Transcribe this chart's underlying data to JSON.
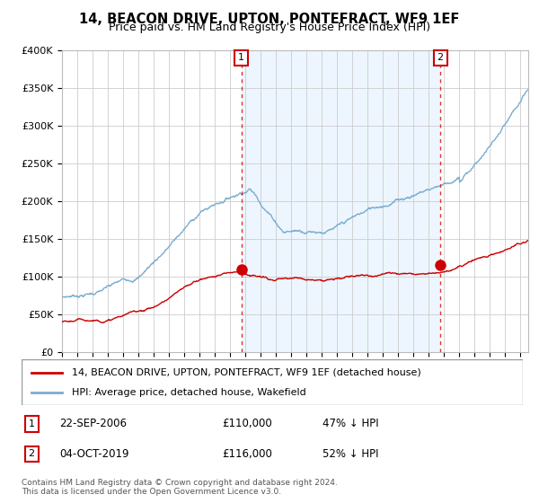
{
  "title": "14, BEACON DRIVE, UPTON, PONTEFRACT, WF9 1EF",
  "subtitle": "Price paid vs. HM Land Registry's House Price Index (HPI)",
  "ylim": [
    0,
    400000
  ],
  "yticks": [
    0,
    50000,
    100000,
    150000,
    200000,
    250000,
    300000,
    350000,
    400000
  ],
  "ytick_labels": [
    "£0",
    "£50K",
    "£100K",
    "£150K",
    "£200K",
    "£250K",
    "£300K",
    "£350K",
    "£400K"
  ],
  "xlim_start": 1995,
  "xlim_end": 2025.5,
  "sale1_date": 2006.73,
  "sale1_price": 110000,
  "sale1_label": "22-SEP-2006",
  "sale1_amount": "£110,000",
  "sale1_pct": "47% ↓ HPI",
  "sale2_date": 2019.75,
  "sale2_price": 116000,
  "sale2_label": "04-OCT-2019",
  "sale2_amount": "£116,000",
  "sale2_pct": "52% ↓ HPI",
  "legend_line1": "14, BEACON DRIVE, UPTON, PONTEFRACT, WF9 1EF (detached house)",
  "legend_line2": "HPI: Average price, detached house, Wakefield",
  "footnote1": "Contains HM Land Registry data © Crown copyright and database right 2024.",
  "footnote2": "This data is licensed under the Open Government Licence v3.0.",
  "line_color_red": "#cc0000",
  "line_color_blue": "#7aadcf",
  "fill_color_blue": "#ddeeff",
  "background_color": "#ffffff",
  "grid_color": "#cccccc",
  "title_fontsize": 10.5,
  "subtitle_fontsize": 9
}
